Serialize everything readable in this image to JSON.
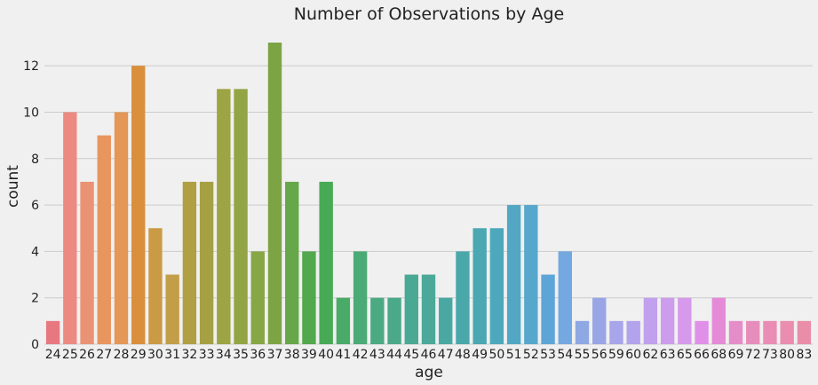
{
  "chart_data": {
    "type": "bar",
    "title": "Number of Observations by Age",
    "xlabel": "age",
    "ylabel": "count",
    "ylim": [
      0,
      13.65
    ],
    "yticks": [
      0,
      2,
      4,
      6,
      8,
      10,
      12
    ],
    "grid": true,
    "categories": [
      "24",
      "25",
      "26",
      "27",
      "28",
      "29",
      "30",
      "31",
      "32",
      "33",
      "34",
      "35",
      "36",
      "37",
      "38",
      "39",
      "40",
      "41",
      "42",
      "43",
      "44",
      "45",
      "46",
      "47",
      "48",
      "49",
      "50",
      "51",
      "52",
      "53",
      "54",
      "55",
      "56",
      "59",
      "60",
      "62",
      "63",
      "65",
      "66",
      "68",
      "69",
      "72",
      "73",
      "80",
      "83"
    ],
    "values": [
      1,
      10,
      7,
      9,
      10,
      12,
      5,
      3,
      7,
      7,
      11,
      11,
      4,
      13,
      7,
      4,
      7,
      2,
      4,
      2,
      2,
      3,
      3,
      2,
      4,
      5,
      5,
      6,
      6,
      3,
      4,
      1,
      2,
      1,
      1,
      2,
      2,
      2,
      1,
      2,
      1,
      1,
      1,
      1,
      1
    ],
    "colors": [
      "#e8787f",
      "#ec8a82",
      "#e99374",
      "#e8955f",
      "#e49757",
      "#d98f3c",
      "#cb9a45",
      "#c39e48",
      "#b09f43",
      "#a6a045",
      "#9da444",
      "#93a445",
      "#87a646",
      "#7ca445",
      "#66a849",
      "#52a84c",
      "#48aa55",
      "#4aab68",
      "#4bab76",
      "#4caa82",
      "#4ba98a",
      "#4aa992",
      "#4ca99a",
      "#4aa8a2",
      "#4ba8aa",
      "#4ba8b2",
      "#4ea8bb",
      "#52a8c4",
      "#57a7cd",
      "#5da5d7",
      "#73a8e0",
      "#8da8e3",
      "#9aa5e6",
      "#a8a5ea",
      "#b3a2ec",
      "#c1a0ed",
      "#cc9ded",
      "#d699eb",
      "#e090e8",
      "#e48ad6",
      "#e58dc8",
      "#e78dbc",
      "#e98db5",
      "#ea8dae",
      "#ea8da9"
    ]
  }
}
